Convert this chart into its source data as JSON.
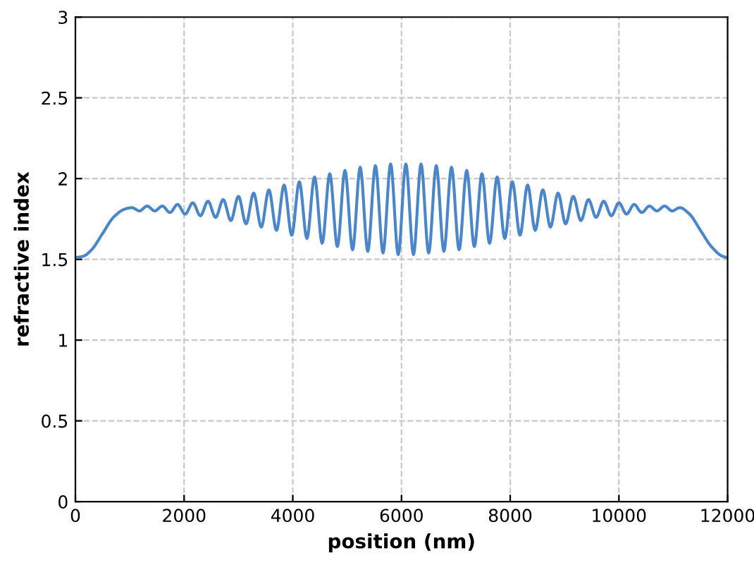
{
  "chart_data": {
    "type": "line",
    "xlabel": "position (nm)",
    "ylabel": "refractive index",
    "xlim": [
      0,
      12000
    ],
    "ylim": [
      0,
      3
    ],
    "xticks": [
      0,
      2000,
      4000,
      6000,
      8000,
      10000,
      12000
    ],
    "yticks": [
      0,
      0.5,
      1,
      1.5,
      2,
      2.5,
      3
    ],
    "grid": true,
    "series": [
      {
        "color": "#4a86c8",
        "x": [
          0,
          150,
          300,
          500,
          700,
          900,
          1040,
          1180,
          1320,
          1460,
          1600,
          1740,
          1880,
          2020,
          2160,
          2300,
          2440,
          2580,
          2720,
          2860,
          3000,
          3140,
          3280,
          3420,
          3560,
          3700,
          3840,
          3980,
          4120,
          4260,
          4400,
          4540,
          4680,
          4820,
          4960,
          5100,
          5240,
          5380,
          5520,
          5660,
          5800,
          5940,
          6080,
          6220,
          6360,
          6500,
          6640,
          6780,
          6920,
          7060,
          7200,
          7340,
          7480,
          7620,
          7760,
          7900,
          8040,
          8180,
          8320,
          8460,
          8600,
          8740,
          8880,
          9020,
          9160,
          9300,
          9440,
          9580,
          9720,
          9860,
          10000,
          10140,
          10280,
          10420,
          10560,
          10700,
          10840,
          10980,
          11120,
          11300,
          11500,
          11700,
          11900,
          12000
        ],
        "values": [
          1.51,
          1.52,
          1.56,
          1.66,
          1.76,
          1.81,
          1.82,
          1.8,
          1.83,
          1.8,
          1.83,
          1.79,
          1.84,
          1.78,
          1.85,
          1.77,
          1.86,
          1.76,
          1.87,
          1.74,
          1.89,
          1.72,
          1.91,
          1.7,
          1.93,
          1.68,
          1.96,
          1.65,
          1.98,
          1.63,
          2.01,
          1.6,
          2.03,
          1.58,
          2.05,
          1.56,
          2.07,
          1.55,
          2.08,
          1.54,
          2.09,
          1.53,
          2.09,
          1.53,
          2.09,
          1.54,
          2.08,
          1.55,
          2.07,
          1.56,
          2.05,
          1.58,
          2.03,
          1.6,
          2.01,
          1.63,
          1.98,
          1.65,
          1.96,
          1.68,
          1.93,
          1.7,
          1.91,
          1.72,
          1.89,
          1.74,
          1.87,
          1.76,
          1.86,
          1.77,
          1.85,
          1.78,
          1.84,
          1.79,
          1.83,
          1.8,
          1.83,
          1.8,
          1.82,
          1.78,
          1.68,
          1.58,
          1.52,
          1.51
        ]
      }
    ]
  }
}
